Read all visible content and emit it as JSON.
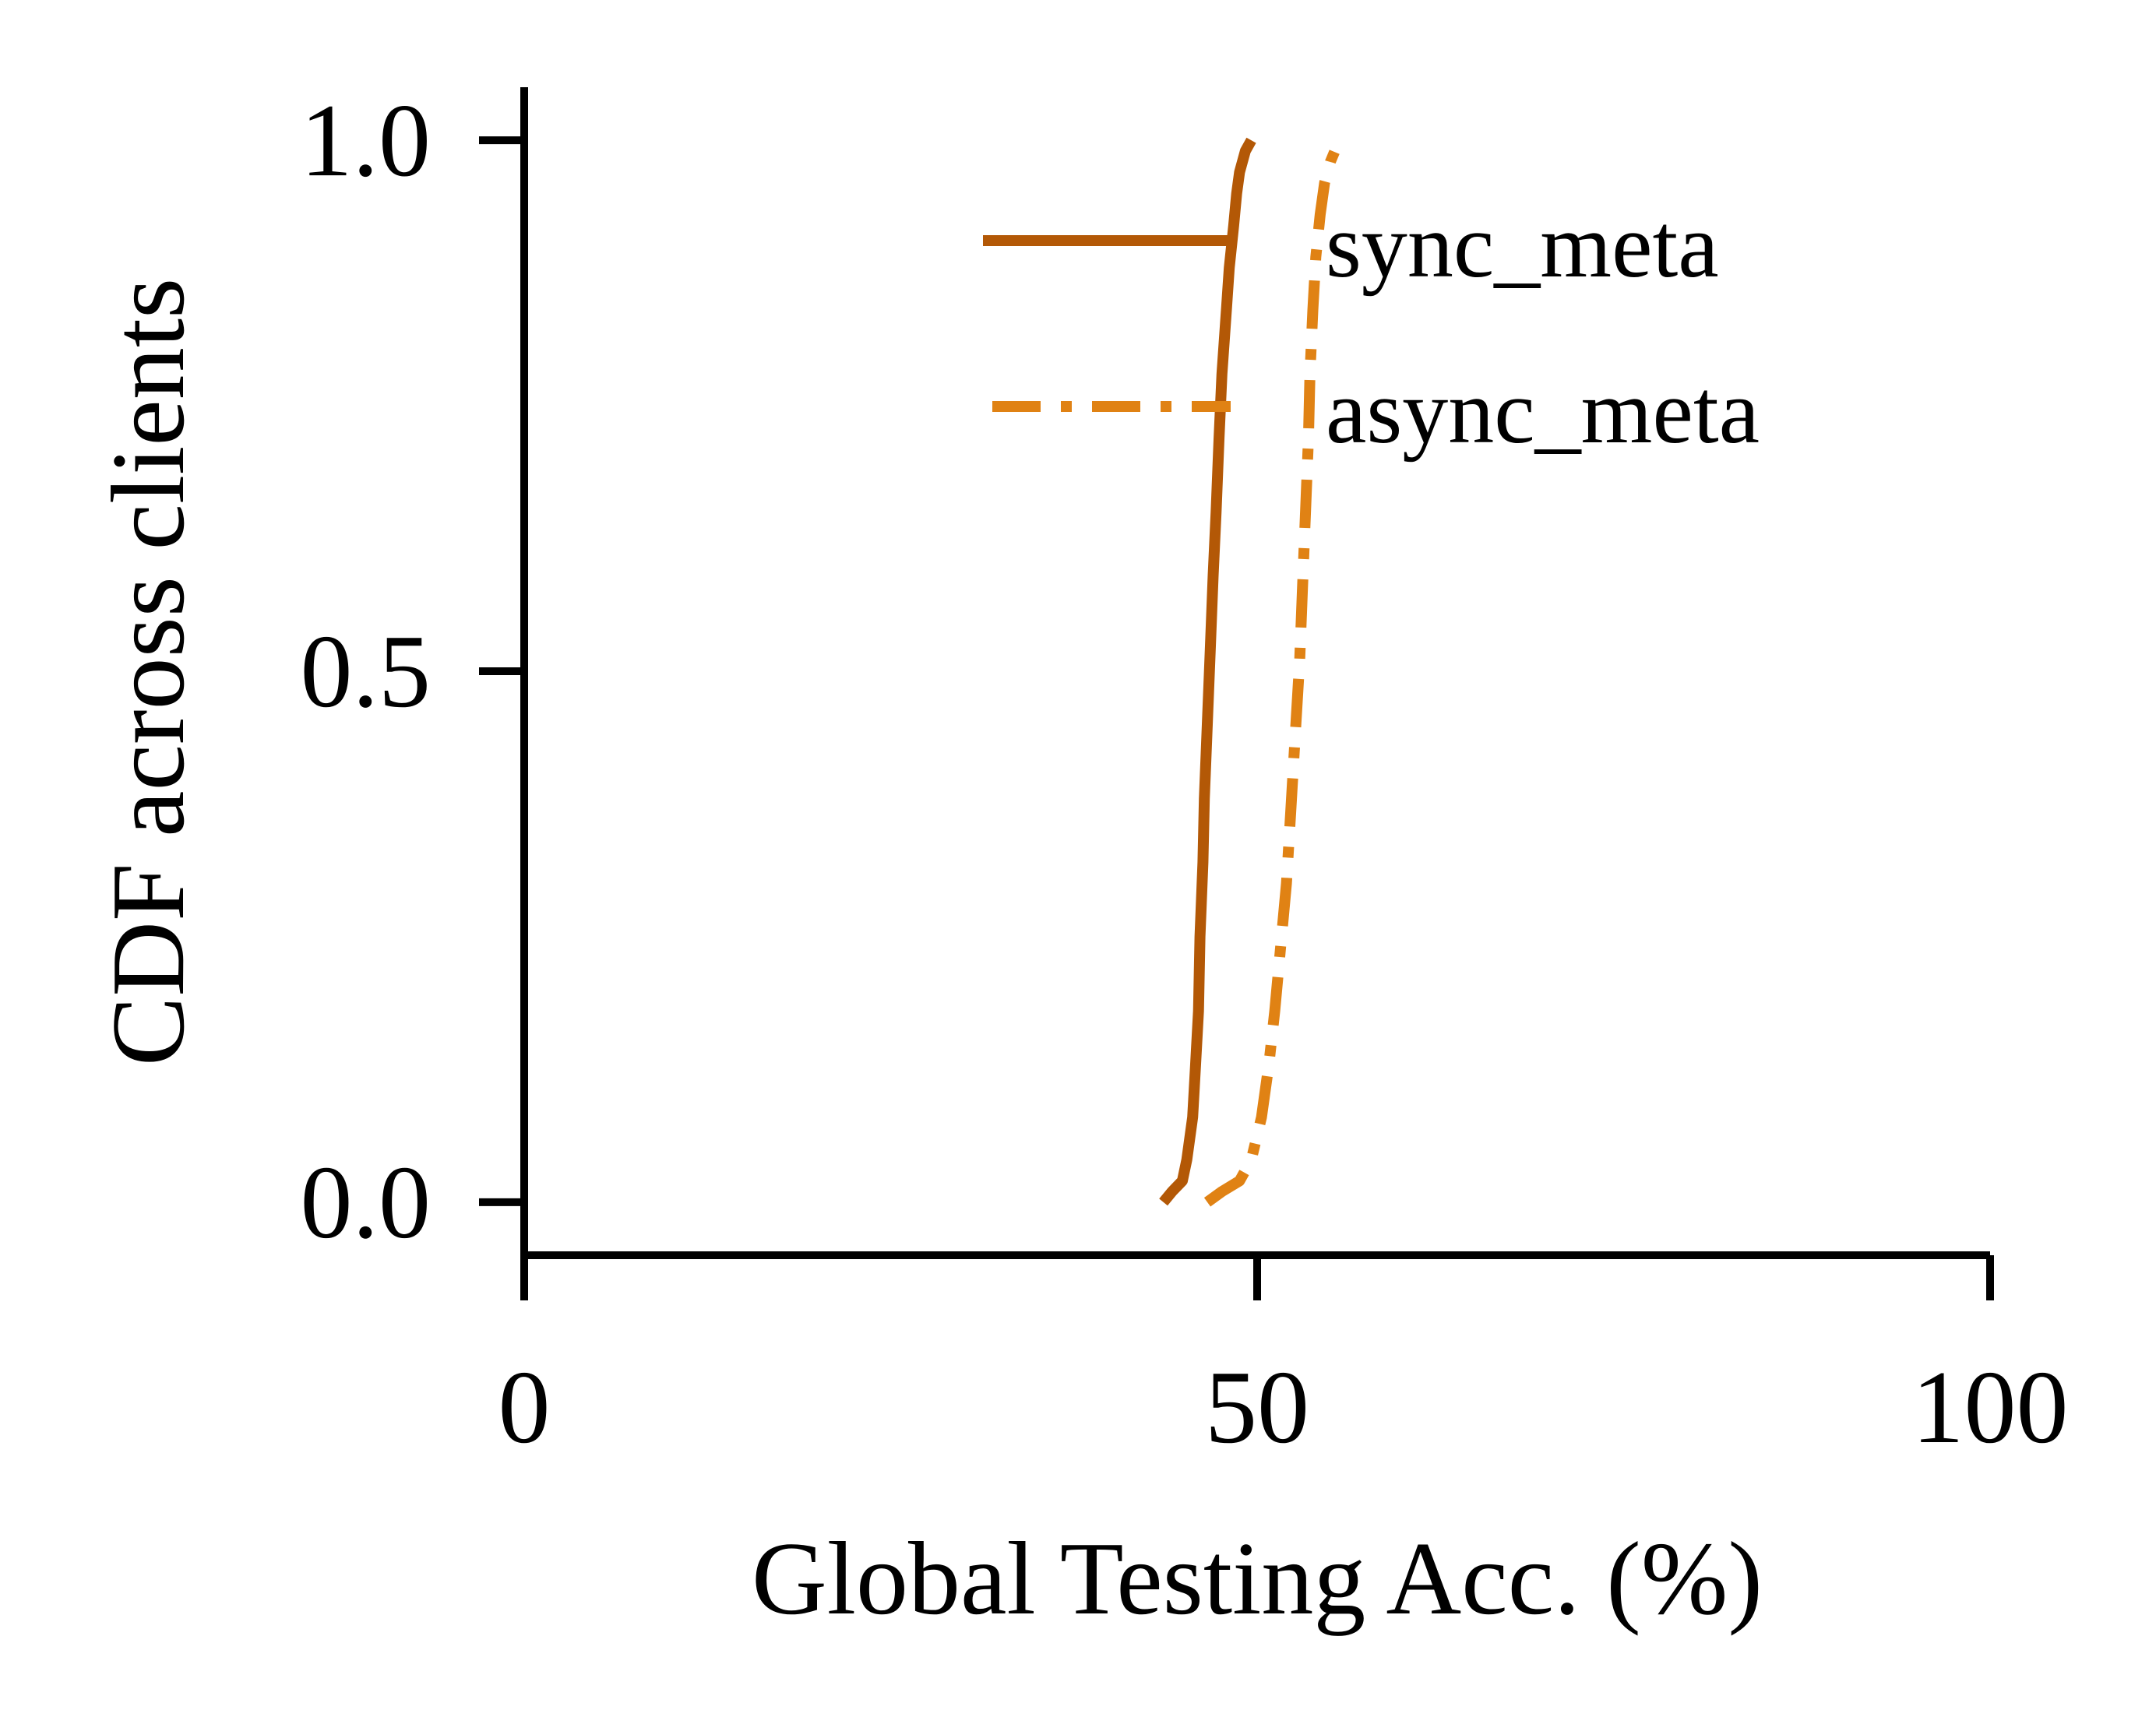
{
  "chart_data": {
    "type": "line",
    "xlabel": "Global Testing Acc. (%)",
    "ylabel": "CDF across clients",
    "xlim": [
      0,
      100
    ],
    "ylim": [
      -0.05,
      1.05
    ],
    "xticks": [
      {
        "value": 0,
        "label": "0"
      },
      {
        "value": 50,
        "label": "50"
      },
      {
        "value": 100,
        "label": "100"
      }
    ],
    "yticks": [
      {
        "value": 0.0,
        "label": "0.0"
      },
      {
        "value": 0.5,
        "label": "0.5"
      },
      {
        "value": 1.0,
        "label": "1.0"
      }
    ],
    "grid": false,
    "legend_position": "top-right",
    "series": [
      {
        "name": "sync_meta",
        "color": "#b35806",
        "style": "solid",
        "x": [
          43.6,
          44.2,
          44.9,
          45.2,
          45.6,
          45.8,
          46.0,
          46.1,
          46.3,
          46.4,
          46.6,
          46.8,
          47.0,
          47.2,
          47.4,
          47.6,
          47.9,
          48.1,
          48.4,
          48.6,
          48.8,
          49.2,
          49.6
        ],
        "y": [
          0.0,
          0.01,
          0.02,
          0.04,
          0.08,
          0.13,
          0.18,
          0.25,
          0.32,
          0.38,
          0.45,
          0.52,
          0.59,
          0.65,
          0.72,
          0.78,
          0.84,
          0.88,
          0.92,
          0.95,
          0.97,
          0.99,
          1.0
        ]
      },
      {
        "name": "async_meta",
        "color": "#e08214",
        "style": "dashdot",
        "x": [
          46.6,
          47.6,
          48.8,
          49.6,
          50.3,
          50.8,
          51.2,
          51.6,
          52.0,
          52.3,
          52.6,
          52.9,
          53.1,
          53.3,
          53.5,
          53.6,
          53.8,
          54.0,
          54.3,
          54.6,
          55.0,
          55.6
        ],
        "y": [
          0.0,
          0.01,
          0.02,
          0.04,
          0.08,
          0.13,
          0.18,
          0.24,
          0.3,
          0.37,
          0.44,
          0.51,
          0.58,
          0.65,
          0.72,
          0.78,
          0.84,
          0.89,
          0.93,
          0.96,
          0.98,
          1.0
        ]
      }
    ]
  }
}
